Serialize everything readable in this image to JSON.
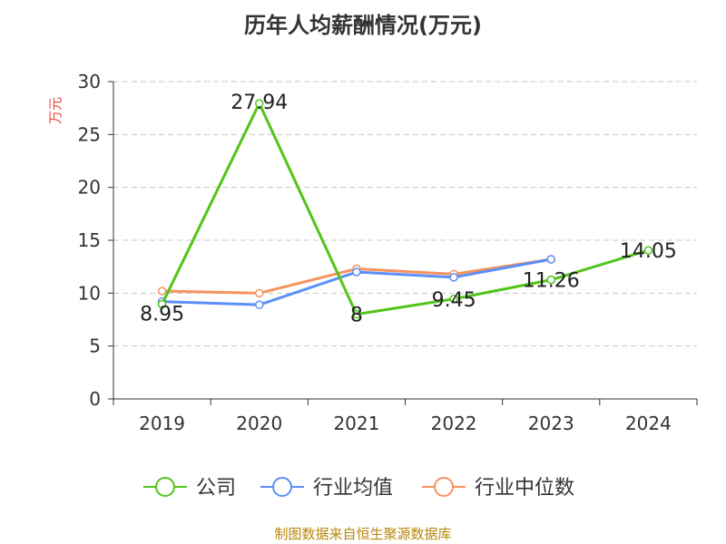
{
  "title": "历年人均薪酬情况(万元)",
  "source": "制图数据来自恒生聚源数据库",
  "chart_data": {
    "type": "line",
    "categories": [
      "2019",
      "2020",
      "2021",
      "2022",
      "2023",
      "2024"
    ],
    "ylabel": "万元",
    "ylim": [
      0,
      30
    ],
    "yticks": [
      0,
      5,
      10,
      15,
      20,
      25,
      30
    ],
    "grid": true,
    "legend_position": "bottom",
    "series": [
      {
        "name": "公司",
        "color": "#52c41a",
        "values": [
          8.95,
          27.94,
          8,
          9.45,
          11.26,
          14.05
        ],
        "labels": [
          "8.95",
          "27.94",
          "8",
          "9.45",
          "11.26",
          "14.05"
        ]
      },
      {
        "name": "行业均值",
        "color": "#5b8ff9",
        "values": [
          9.2,
          8.9,
          12.0,
          11.5,
          13.2,
          null
        ]
      },
      {
        "name": "行业中位数",
        "color": "#f6935e",
        "values": [
          10.2,
          10.0,
          12.3,
          11.8,
          13.2,
          null
        ]
      }
    ]
  }
}
